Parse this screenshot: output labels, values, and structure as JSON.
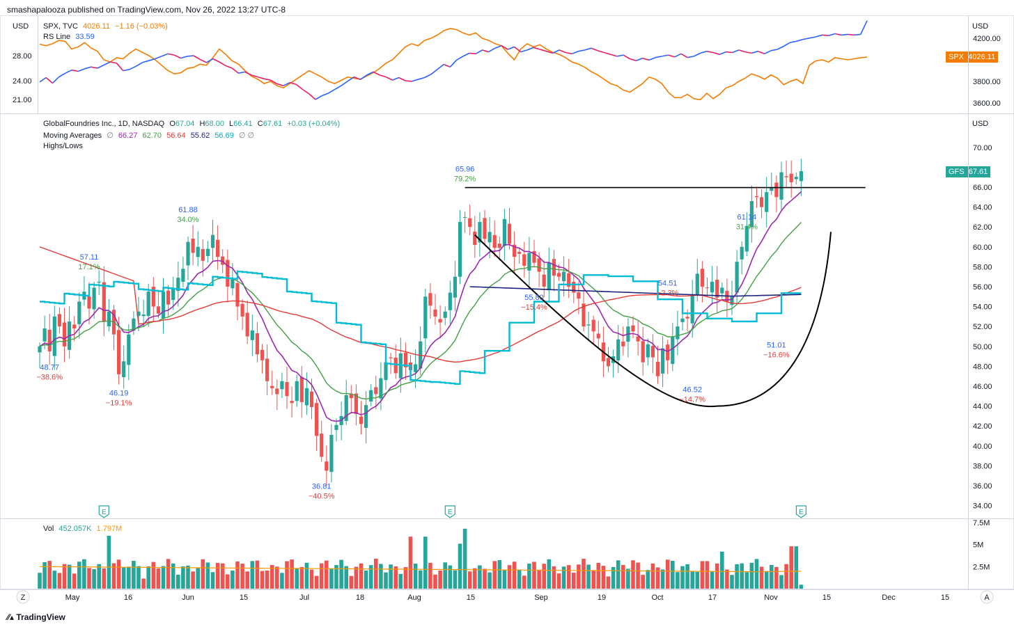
{
  "header": {
    "published": "smashapalooza published on TradingView.com, Nov 26, 2022 13:27 UTC-8"
  },
  "footer": {
    "brand": "TradingView"
  },
  "colors": {
    "up": "#26a69a",
    "down": "#ef5350",
    "ma10": "#9c27b0",
    "ma21": "#43a047",
    "ma50": "#e53935",
    "ma200": "#1a237e",
    "ma_cyan": "#00bcd4",
    "spx": "#f57c00",
    "rs": "#2962ff",
    "vol_avg": "#ff9800"
  },
  "top_panel": {
    "currency": "USD",
    "left_axis_ticks": [
      "28.00",
      "24.00",
      "21.00"
    ],
    "right_axis_ticks": [
      "4200.00",
      "3800.00",
      "3600.00"
    ],
    "legend_spx": {
      "name": "SPX, TVC",
      "value": "4026.11",
      "change": "−1.16 (−0.03%)"
    },
    "legend_rs": {
      "name": "RS Line",
      "value": "33.59"
    },
    "spx_badge": {
      "label": "SPX",
      "value": "4026.11"
    },
    "spx_series": [
      4145,
      4130,
      4150,
      4180,
      4170,
      4100,
      4120,
      4160,
      4110,
      4080,
      4000,
      3980,
      4020,
      4010,
      4060,
      4100,
      4070,
      4040,
      4000,
      3950,
      3900,
      3870,
      3880,
      3920,
      3930,
      3960,
      3950,
      4020,
      4100,
      4050,
      3990,
      3960,
      3900,
      3850,
      3820,
      3780,
      3800,
      3760,
      3740,
      3780,
      3820,
      3860,
      3900,
      3870,
      3840,
      3800,
      3780,
      3810,
      3840,
      3830,
      3820,
      3850,
      3880,
      3920,
      3970,
      4000,
      4060,
      4120,
      4150,
      4130,
      4180,
      4200,
      4230,
      4270,
      4290,
      4280,
      4250,
      4230,
      4250,
      4200,
      4180,
      4150,
      4130,
      4060,
      4000,
      4100,
      4150,
      4120,
      4140,
      4100,
      4070,
      4050,
      4020,
      3980,
      3960,
      3930,
      3890,
      3860,
      3820,
      3780,
      3760,
      3720,
      3700,
      3740,
      3780,
      3840,
      3820,
      3780,
      3700,
      3650,
      3650,
      3680,
      3640,
      3630,
      3690,
      3640,
      3680,
      3740,
      3760,
      3800,
      3830,
      3870,
      3850,
      3820,
      3860,
      3830,
      3770,
      3800,
      3820,
      3780,
      3950,
      3990,
      4000,
      3980,
      4020,
      4010,
      4000,
      4010,
      4020,
      4026
    ]
  },
  "rs_series": [
    23.8,
    24.5,
    23.6,
    24.6,
    25.2,
    25.7,
    25.5,
    25.9,
    26.2,
    26.0,
    26.5,
    27.0,
    26.8,
    25.6,
    25.8,
    26.3,
    26.9,
    27.2,
    27.5,
    27.9,
    28.3,
    28.1,
    27.6,
    27.9,
    28.0,
    27.4,
    26.9,
    27.5,
    27.0,
    26.4,
    26.0,
    25.2,
    25.4,
    24.9,
    24.6,
    24.3,
    24.1,
    23.5,
    23.2,
    23.7,
    23.4,
    22.6,
    21.9,
    21.0,
    21.6,
    22.0,
    22.6,
    23.2,
    23.9,
    24.6,
    24.2,
    24.9,
    25.4,
    24.9,
    24.6,
    24.1,
    24.5,
    24.0,
    23.9,
    24.2,
    24.5,
    25.0,
    25.8,
    26.6,
    26.2,
    27.3,
    27.9,
    28.4,
    28.3,
    28.9,
    28.6,
    29.2,
    29.6,
    29.0,
    29.4,
    28.6,
    28.9,
    29.3,
    29.0,
    28.7,
    28.4,
    28.9,
    28.5,
    28.3,
    28.7,
    28.9,
    29.2,
    28.8,
    28.5,
    28.2,
    27.9,
    28.1,
    27.5,
    27.2,
    27.6,
    27.3,
    27.7,
    27.9,
    28.1,
    27.8,
    28.3,
    27.7,
    27.9,
    28.4,
    28.7,
    28.5,
    28.2,
    28.6,
    28.5,
    28.9,
    28.6,
    28.4,
    28.7,
    28.3,
    28.8,
    29.0,
    29.5,
    30.1,
    30.3,
    30.6,
    30.8,
    31.0,
    31.3,
    31.2,
    31.5,
    31.3,
    31.4,
    31.3,
    31.4,
    33.59
  ],
  "main_panel": {
    "currency": "USD",
    "legend_title": {
      "name": "GlobalFoundries Inc., 1D, NASDAQ",
      "o_label": "O",
      "o": "67.04",
      "h_label": "H",
      "h": "68.00",
      "l_label": "L",
      "l": "66.41",
      "c_label": "C",
      "c": "67.61",
      "change": "+0.03 (+0.04%)"
    },
    "legend_ma": {
      "name": "Moving Averages",
      "values": [
        "66.27",
        "62.70",
        "56.64",
        "55.62",
        "56.69"
      ]
    },
    "legend_hl": "Highs/Lows",
    "price_badge": {
      "label": "GFS",
      "value": "67.61"
    },
    "right_axis_ticks": [
      "70.00",
      "66.00",
      "64.00",
      "62.00",
      "60.00",
      "58.00",
      "56.00",
      "54.00",
      "52.00",
      "50.00",
      "48.00",
      "46.00",
      "44.00",
      "42.00",
      "40.00",
      "38.00",
      "36.00",
      "34.00"
    ],
    "earnings_label": "E",
    "annotations": [
      {
        "price": "48.77",
        "pct": "−38.6%"
      },
      {
        "price": "57.11",
        "pct": "17.1%"
      },
      {
        "price": "46.19",
        "pct": "−19.1%"
      },
      {
        "price": "61.88",
        "pct": "34.0%"
      },
      {
        "price": "36.81",
        "pct": "−40.5%"
      },
      {
        "price": "65.96",
        "pct": "79.2%"
      },
      {
        "price": "55.80",
        "pct": "−15.4%"
      },
      {
        "price": "54.51",
        "pct": "−2.3%"
      },
      {
        "price": "46.52",
        "pct": "−14.7%"
      },
      {
        "price": "61.14",
        "pct": "31.4%"
      },
      {
        "price": "51.01",
        "pct": "−16.6%"
      }
    ]
  },
  "chart_data": {
    "type": "candlestick",
    "title": "GlobalFoundries Inc., 1D, NASDAQ",
    "ylim": [
      33,
      71.5
    ],
    "closes": [
      50.0,
      51.8,
      49.5,
      53.0,
      52.0,
      50.0,
      52.5,
      51.8,
      54.5,
      55.5,
      53.8,
      55.9,
      56.5,
      52.5,
      53.5,
      51.2,
      47.2,
      48.5,
      51.2,
      52.8,
      53.5,
      53.2,
      55.5,
      54.0,
      53.3,
      55.5,
      54.2,
      55.8,
      56.9,
      57.8,
      60.5,
      59.4,
      60.0,
      58.6,
      59.8,
      61.2,
      59.0,
      58.2,
      56.0,
      56.8,
      54.0,
      53.0,
      51.0,
      51.6,
      49.2,
      48.6,
      46.5,
      45.8,
      45.2,
      46.5,
      45.0,
      44.3,
      46.5,
      44.4,
      45.8,
      43.9,
      41.0,
      38.9,
      37.5,
      41.1,
      42.1,
      43.0,
      45.1,
      44.8,
      43.2,
      42.2,
      44.1,
      45.6,
      45.2,
      46.8,
      48.4,
      48.8,
      47.3,
      49.3,
      47.9,
      47.6,
      48.2,
      50.5,
      55.0,
      54.1,
      53.0,
      52.4,
      53.5,
      55.4,
      57.0,
      62.5,
      63.0,
      62.0,
      60.2,
      62.5,
      60.8,
      61.5,
      59.9,
      59.9,
      62.8,
      60.3,
      59.0,
      59.3,
      58.1,
      59.4,
      58.4,
      57.5,
      56.0,
      58.4,
      57.1,
      57.0,
      57.5,
      56.0,
      55.4,
      54.8,
      52.0,
      52.2,
      51.5,
      50.8,
      48.5,
      48.0,
      49.0,
      50.7,
      50.0,
      52.0,
      51.5,
      50.5,
      48.4,
      50.2,
      48.9,
      47.0,
      49.8,
      48.6,
      51.0,
      52.0,
      52.8,
      52.8,
      55.2,
      57.3,
      56.0,
      55.9,
      56.5,
      54.9,
      55.9,
      54.5,
      55.0,
      58.5,
      60.0,
      62.1,
      64.6,
      65.0,
      64.0,
      65.5,
      66.0,
      65.0,
      67.5,
      67.0,
      66.5,
      67.04,
      67.61
    ],
    "volume_ylim": [
      0,
      7.5
    ],
    "volume_ticks": [
      "7.5M",
      "5M",
      "2.5M"
    ],
    "x_ticks": [
      "May",
      "16",
      "Jun",
      "15",
      "Jul",
      "18",
      "Aug",
      "15",
      "Sep",
      "19",
      "Oct",
      "17",
      "Nov",
      "15",
      "Dec",
      "15"
    ],
    "volume_legend": {
      "name": "Vol",
      "value": "452.057K",
      "avg": "1.797M"
    }
  },
  "bottom_bar": {
    "left": "Z",
    "right": "A"
  }
}
